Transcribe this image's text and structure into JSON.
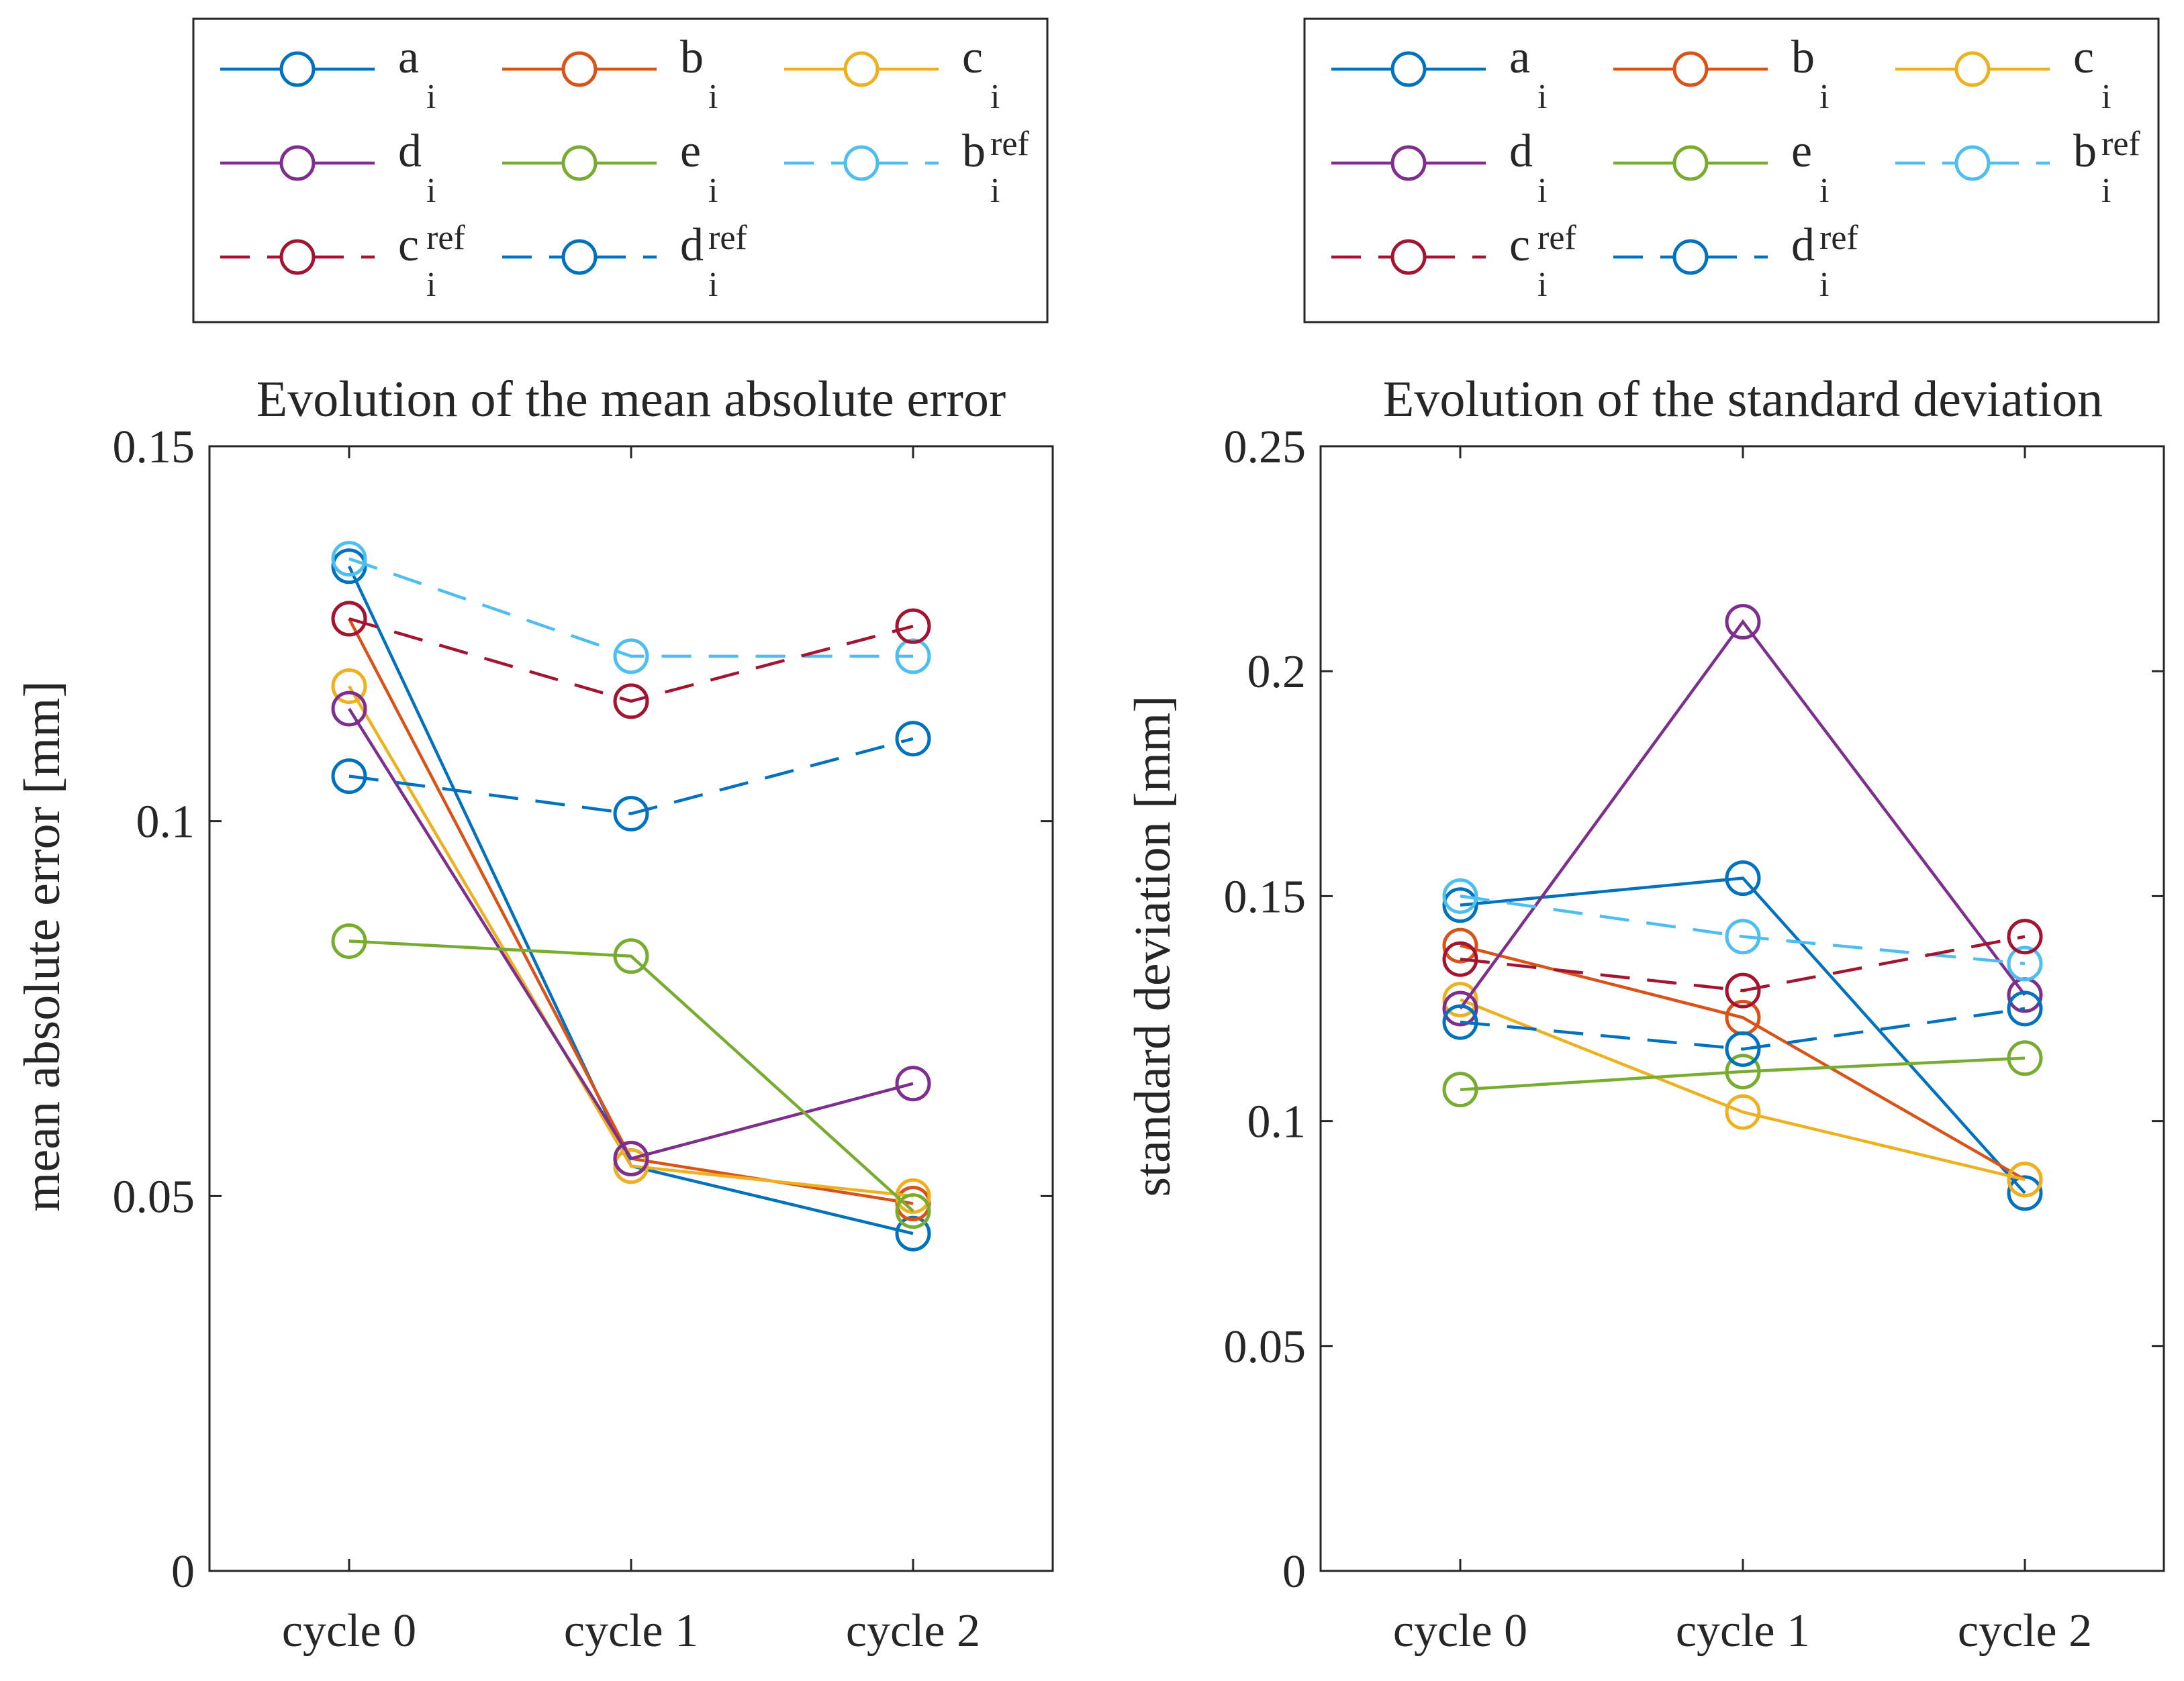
{
  "chart_data": [
    {
      "type": "line",
      "title": "Evolution of the mean absolute error",
      "xlabel": "",
      "ylabel": "mean absolute error [mm]",
      "categories": [
        "cycle 0",
        "cycle 1",
        "cycle 2"
      ],
      "ylim": [
        0,
        0.15
      ],
      "yticks": [
        0,
        0.05,
        0.1,
        0.15
      ],
      "ytick_labels": [
        "0",
        "0.05",
        "0.1",
        "0.15"
      ],
      "grid": false,
      "legend_position": "top",
      "series": [
        {
          "name": "a",
          "sub": "i",
          "sup": "",
          "color": "#0072BD",
          "dash": false,
          "values": [
            0.134,
            0.054,
            0.045
          ]
        },
        {
          "name": "b",
          "sub": "i",
          "sup": "",
          "color": "#D95319",
          "dash": false,
          "values": [
            0.127,
            0.055,
            0.049
          ]
        },
        {
          "name": "c",
          "sub": "i",
          "sup": "",
          "color": "#EDB120",
          "dash": false,
          "values": [
            0.118,
            0.054,
            0.05
          ]
        },
        {
          "name": "d",
          "sub": "i",
          "sup": "",
          "color": "#7E2F8E",
          "dash": false,
          "values": [
            0.115,
            0.055,
            0.065
          ]
        },
        {
          "name": "e",
          "sub": "i",
          "sup": "",
          "color": "#77AC30",
          "dash": false,
          "values": [
            0.084,
            0.082,
            0.048
          ]
        },
        {
          "name": "b",
          "sub": "i",
          "sup": "ref",
          "color": "#4DBEEE",
          "dash": true,
          "values": [
            0.135,
            0.122,
            0.122
          ]
        },
        {
          "name": "c",
          "sub": "i",
          "sup": "ref",
          "color": "#A2142F",
          "dash": true,
          "values": [
            0.127,
            0.116,
            0.126
          ]
        },
        {
          "name": "d",
          "sub": "i",
          "sup": "ref",
          "color": "#0072BD",
          "dash": true,
          "values": [
            0.106,
            0.101,
            0.111
          ]
        }
      ]
    },
    {
      "type": "line",
      "title": "Evolution of the standard deviation",
      "xlabel": "",
      "ylabel": "standard deviation [mm]",
      "categories": [
        "cycle 0",
        "cycle 1",
        "cycle 2"
      ],
      "ylim": [
        0,
        0.25
      ],
      "yticks": [
        0,
        0.05,
        0.1,
        0.15,
        0.2,
        0.25
      ],
      "ytick_labels": [
        "0",
        "0.05",
        "0.1",
        "0.15",
        "0.2",
        "0.25"
      ],
      "grid": false,
      "legend_position": "top",
      "series": [
        {
          "name": "a",
          "sub": "i",
          "sup": "",
          "color": "#0072BD",
          "dash": false,
          "values": [
            0.148,
            0.154,
            0.084
          ]
        },
        {
          "name": "b",
          "sub": "i",
          "sup": "",
          "color": "#D95319",
          "dash": false,
          "values": [
            0.139,
            0.123,
            0.087
          ]
        },
        {
          "name": "c",
          "sub": "i",
          "sup": "",
          "color": "#EDB120",
          "dash": false,
          "values": [
            0.127,
            0.102,
            0.087
          ]
        },
        {
          "name": "d",
          "sub": "i",
          "sup": "",
          "color": "#7E2F8E",
          "dash": false,
          "values": [
            0.125,
            0.211,
            0.128
          ]
        },
        {
          "name": "e",
          "sub": "i",
          "sup": "",
          "color": "#77AC30",
          "dash": false,
          "values": [
            0.107,
            0.111,
            0.114
          ]
        },
        {
          "name": "b",
          "sub": "i",
          "sup": "ref",
          "color": "#4DBEEE",
          "dash": true,
          "values": [
            0.15,
            0.141,
            0.135
          ]
        },
        {
          "name": "c",
          "sub": "i",
          "sup": "ref",
          "color": "#A2142F",
          "dash": true,
          "values": [
            0.136,
            0.129,
            0.141
          ]
        },
        {
          "name": "d",
          "sub": "i",
          "sup": "ref",
          "color": "#0072BD",
          "dash": true,
          "values": [
            0.122,
            0.116,
            0.125
          ]
        }
      ]
    }
  ]
}
